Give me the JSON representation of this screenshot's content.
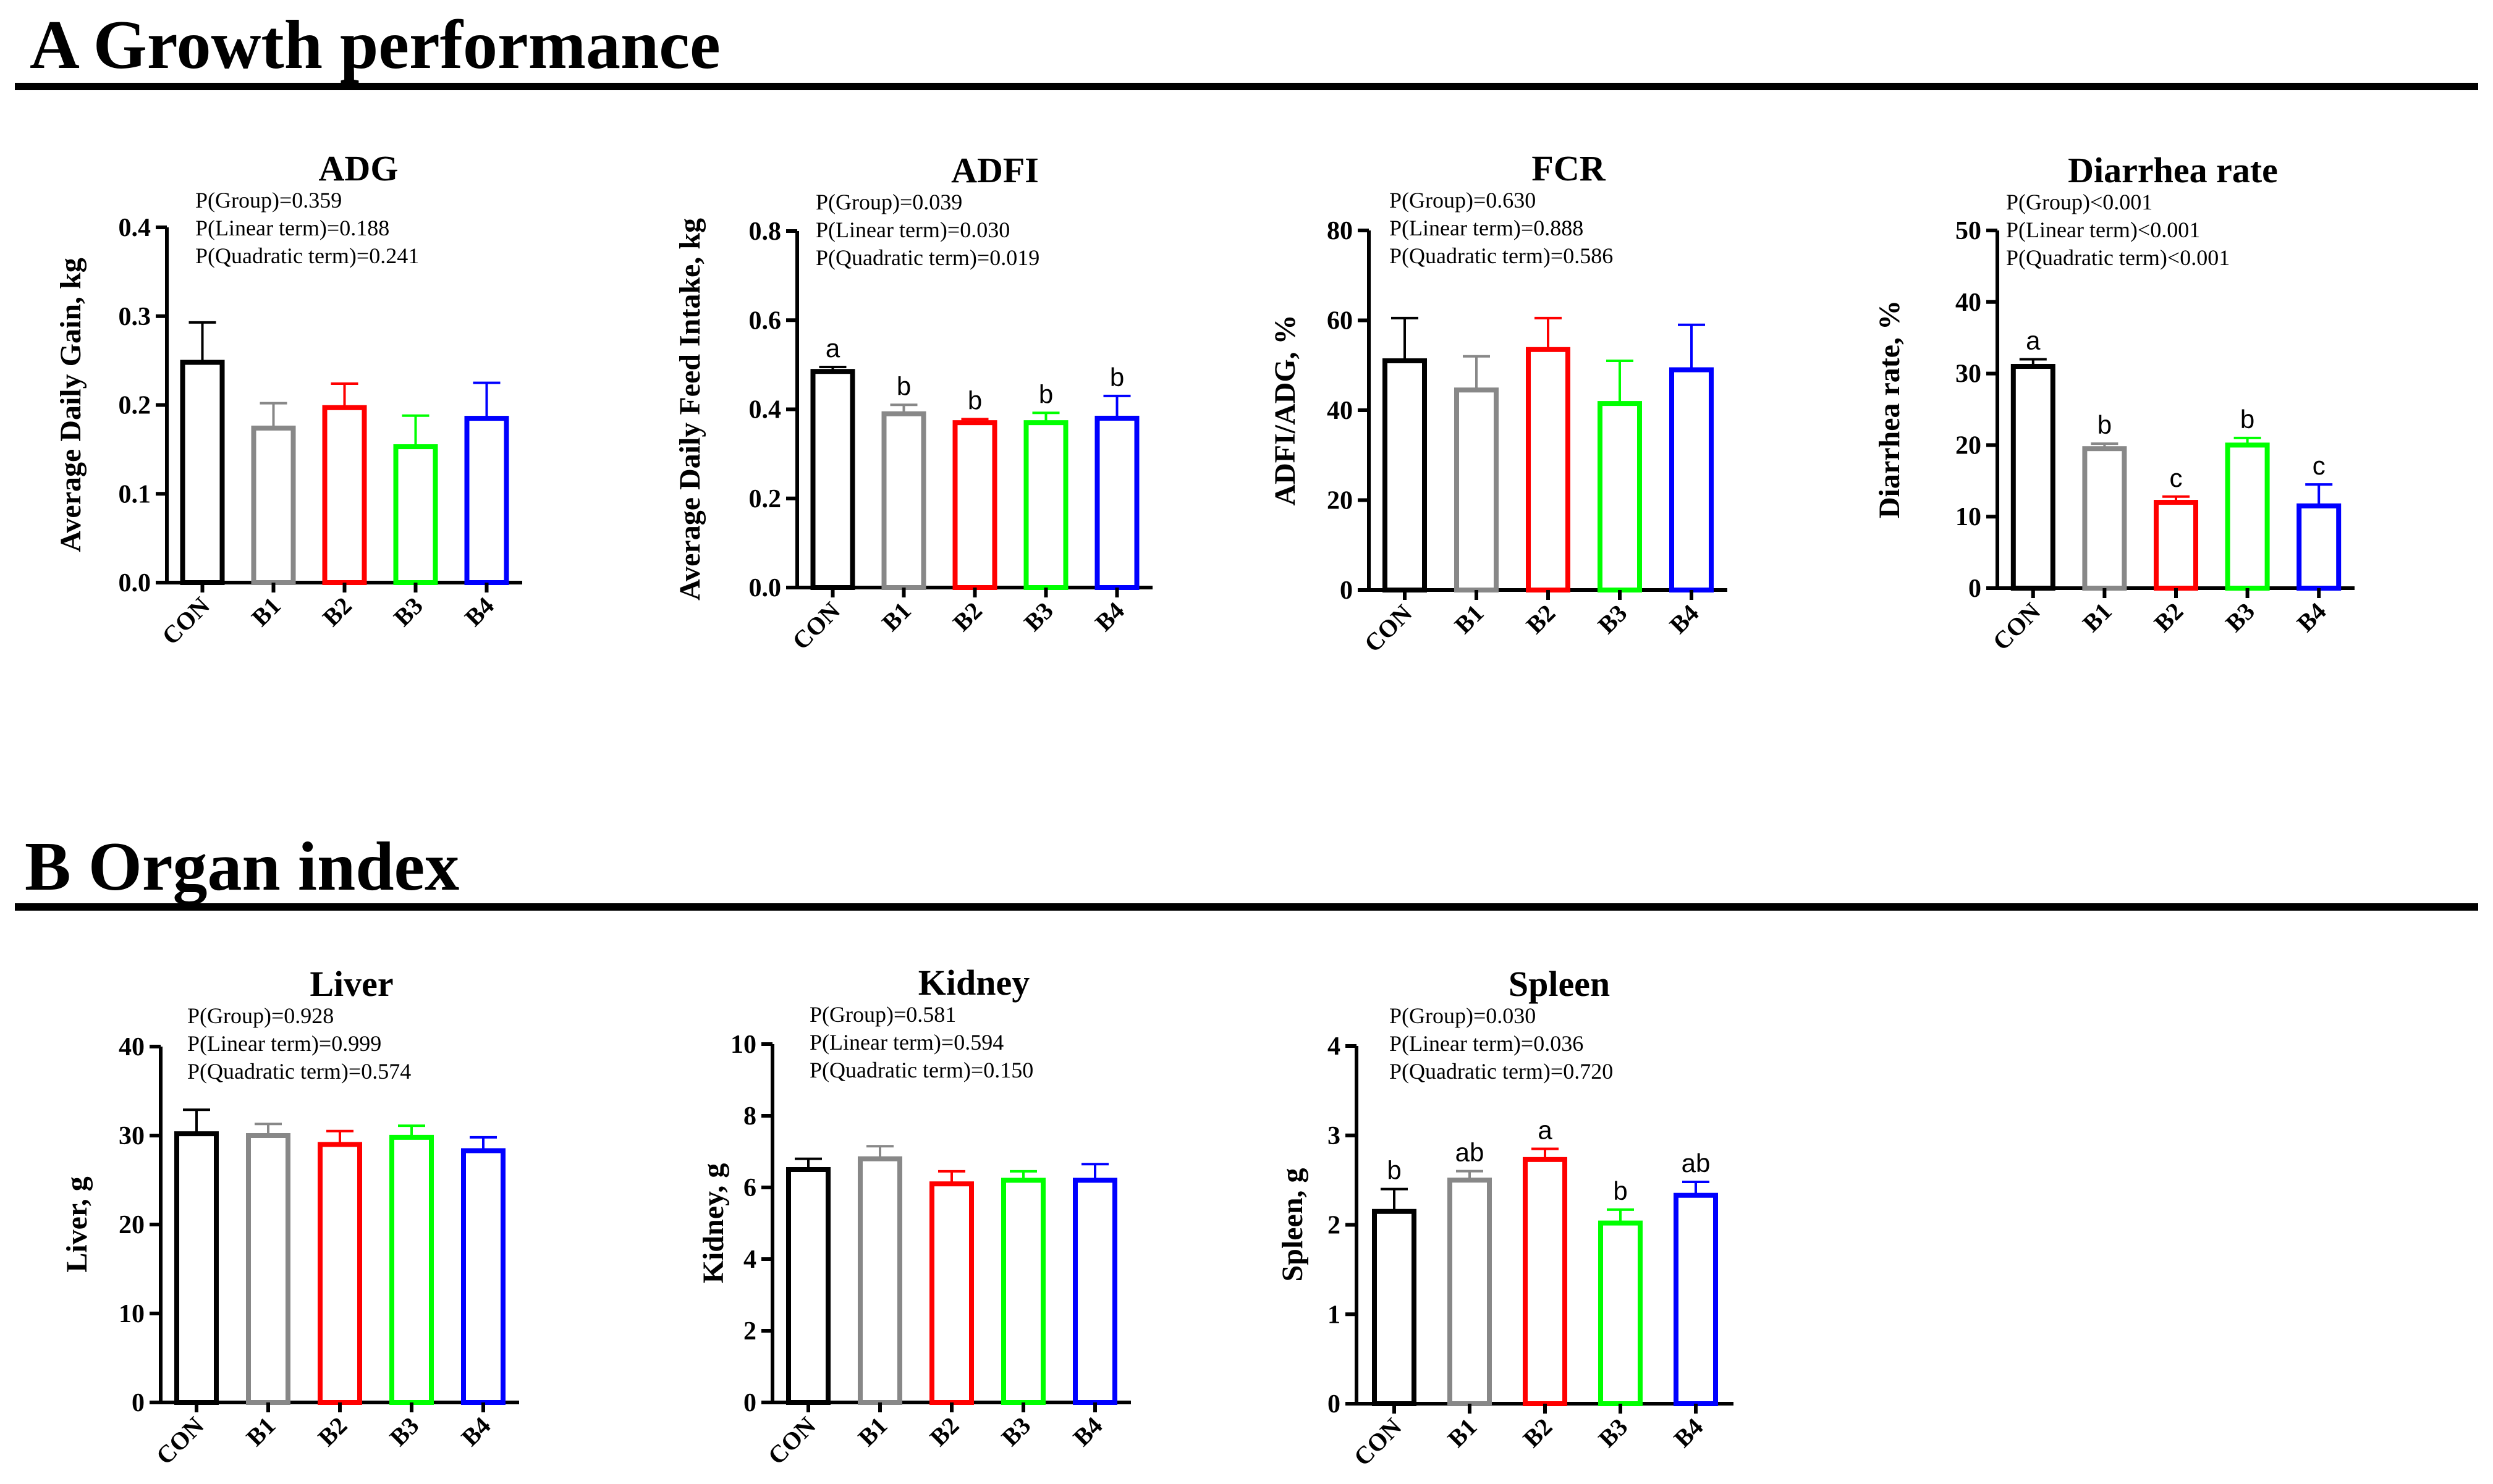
{
  "sections": [
    {
      "title": "A Growth performance"
    },
    {
      "title": "B Organ index"
    }
  ],
  "chart_data": [
    {
      "type": "bar",
      "title": "ADG",
      "xlabel": "",
      "ylabel": "Average Daily Gain, kg",
      "categories": [
        "CON",
        "B1",
        "B2",
        "B3",
        "B4"
      ],
      "values": [
        0.248,
        0.174,
        0.197,
        0.153,
        0.185
      ],
      "errors": [
        0.045,
        0.028,
        0.027,
        0.035,
        0.04
      ],
      "letters": [
        "",
        "",
        "",
        "",
        ""
      ],
      "ylim": [
        0,
        0.4
      ],
      "ticks": [
        "0.0",
        "0.1",
        "0.2",
        "0.3",
        "0.4"
      ],
      "stats": [
        "P(Group)=0.359",
        "P(Linear term)=0.188",
        "P(Quadratic term)=0.241"
      ]
    },
    {
      "type": "bar",
      "title": "ADFI",
      "xlabel": "",
      "ylabel": "Average Daily Feed Intake, kg",
      "categories": [
        "CON",
        "B1",
        "B2",
        "B3",
        "B4"
      ],
      "values": [
        0.485,
        0.39,
        0.37,
        0.37,
        0.38
      ],
      "errors": [
        0.01,
        0.02,
        0.008,
        0.022,
        0.05
      ],
      "letters": [
        "a",
        "b",
        "b",
        "b",
        "b"
      ],
      "ylim": [
        0,
        0.8
      ],
      "ticks": [
        "0.0",
        "0.2",
        "0.4",
        "0.6",
        "0.8"
      ],
      "stats": [
        "P(Group)=0.039",
        "P(Linear term)=0.030",
        "P(Quadratic term)=0.019"
      ]
    },
    {
      "type": "bar",
      "title": "FCR",
      "xlabel": "",
      "ylabel": "ADFI/ADG, %",
      "categories": [
        "CON",
        "B1",
        "B2",
        "B3",
        "B4"
      ],
      "values": [
        51,
        44.5,
        53.5,
        41.5,
        49
      ],
      "errors": [
        9.5,
        7.5,
        7,
        9.5,
        10
      ],
      "letters": [
        "",
        "",
        "",
        "",
        ""
      ],
      "ylim": [
        0,
        80
      ],
      "ticks": [
        "0",
        "20",
        "40",
        "60",
        "80"
      ],
      "stats": [
        "P(Group)=0.630",
        "P(Linear term)=0.888",
        "P(Quadratic term)=0.586"
      ]
    },
    {
      "type": "bar",
      "title": "Diarrhea rate",
      "xlabel": "",
      "ylabel": "Diarrhea rate, %",
      "categories": [
        "CON",
        "B1",
        "B2",
        "B3",
        "B4"
      ],
      "values": [
        31,
        19.5,
        12,
        20,
        11.5
      ],
      "errors": [
        1,
        0.7,
        0.8,
        1,
        3
      ],
      "letters": [
        "a",
        "b",
        "c",
        "b",
        "c"
      ],
      "ylim": [
        0,
        50
      ],
      "ticks": [
        "0",
        "10",
        "20",
        "30",
        "40",
        "50"
      ],
      "stats": [
        "P(Group)<0.001",
        "P(Linear term)<0.001",
        "P(Quadratic term)<0.001"
      ]
    },
    {
      "type": "bar",
      "title": "Liver",
      "xlabel": "",
      "ylabel": "Liver, g",
      "categories": [
        "CON",
        "B1",
        "B2",
        "B3",
        "B4"
      ],
      "values": [
        30.2,
        30,
        29,
        29.8,
        28.3
      ],
      "errors": [
        2.7,
        1.3,
        1.5,
        1.3,
        1.5
      ],
      "letters": [
        "",
        "",
        "",
        "",
        ""
      ],
      "ylim": [
        0,
        40
      ],
      "ticks": [
        "0",
        "10",
        "20",
        "30",
        "40"
      ],
      "stats": [
        "P(Group)=0.928",
        "P(Linear term)=0.999",
        "P(Quadratic term)=0.574"
      ]
    },
    {
      "type": "bar",
      "title": "Kidney",
      "xlabel": "",
      "ylabel": "Kidney, g",
      "categories": [
        "CON",
        "B1",
        "B2",
        "B3",
        "B4"
      ],
      "values": [
        6.5,
        6.8,
        6.1,
        6.2,
        6.2
      ],
      "errors": [
        0.3,
        0.35,
        0.35,
        0.25,
        0.45
      ],
      "letters": [
        "",
        "",
        "",
        "",
        ""
      ],
      "ylim": [
        0,
        10
      ],
      "ticks": [
        "0",
        "2",
        "4",
        "6",
        "8",
        "10"
      ],
      "stats": [
        "P(Group)=0.581",
        "P(Linear term)=0.594",
        "P(Quadratic term)=0.150"
      ]
    },
    {
      "type": "bar",
      "title": "Spleen",
      "xlabel": "",
      "ylabel": "Spleen, g",
      "categories": [
        "CON",
        "B1",
        "B2",
        "B3",
        "B4"
      ],
      "values": [
        2.15,
        2.5,
        2.73,
        2.02,
        2.33
      ],
      "errors": [
        0.25,
        0.1,
        0.12,
        0.15,
        0.15
      ],
      "letters": [
        "b",
        "ab",
        "a",
        "b",
        "ab"
      ],
      "ylim": [
        0,
        4
      ],
      "ticks": [
        "0",
        "1",
        "2",
        "3",
        "4"
      ],
      "stats": [
        "P(Group)=0.030",
        "P(Linear term)=0.036",
        "P(Quadratic term)=0.720"
      ]
    }
  ],
  "colors": {
    "bars": [
      "#000000",
      "#888888",
      "#ff0000",
      "#00ff00",
      "#0000ff"
    ],
    "letters": "#000000",
    "rules": "#000000"
  }
}
